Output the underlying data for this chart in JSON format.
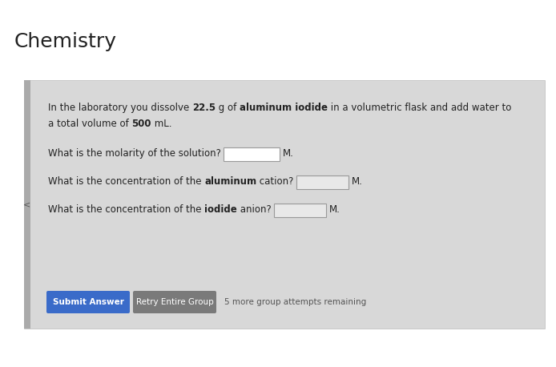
{
  "title": "Chemistry",
  "title_fontsize": 18,
  "page_bg": "#ffffff",
  "card_bg": "#d8d8d8",
  "card_left_bar_color": "#aaaaaa",
  "body_fontsize": 8.5,
  "btn_fontsize": 7.5,
  "line1_parts": [
    [
      "In the laboratory you dissolve ",
      false
    ],
    [
      "22.5",
      true
    ],
    [
      " g of ",
      false
    ],
    [
      "aluminum iodide",
      true
    ],
    [
      " in a volumetric flask and add water to",
      false
    ]
  ],
  "line2_parts": [
    [
      "a total volume of ",
      false
    ],
    [
      "500",
      true
    ],
    [
      " mL.",
      false
    ]
  ],
  "q1_parts": [
    [
      "What is the molarity of the solution?",
      false
    ]
  ],
  "q2_parts": [
    [
      "What is the concentration of the ",
      false
    ],
    [
      "aluminum",
      true
    ],
    [
      " cation?",
      false
    ]
  ],
  "q3_parts": [
    [
      "What is the concentration of the ",
      false
    ],
    [
      "iodide",
      true
    ],
    [
      " anion?",
      false
    ]
  ],
  "m_label": "M.",
  "submit_btn_color": "#3a6bc9",
  "submit_btn_text": "Submit Answer",
  "retry_btn_color": "#7a7a7a",
  "retry_btn_text": "Retry Entire Group",
  "attempts_text": "5 more group attempts remaining",
  "text_color": "#222222",
  "input_box1_color": "#ffffff",
  "input_box23_color": "#e8e8e8",
  "input_border_color": "#999999"
}
